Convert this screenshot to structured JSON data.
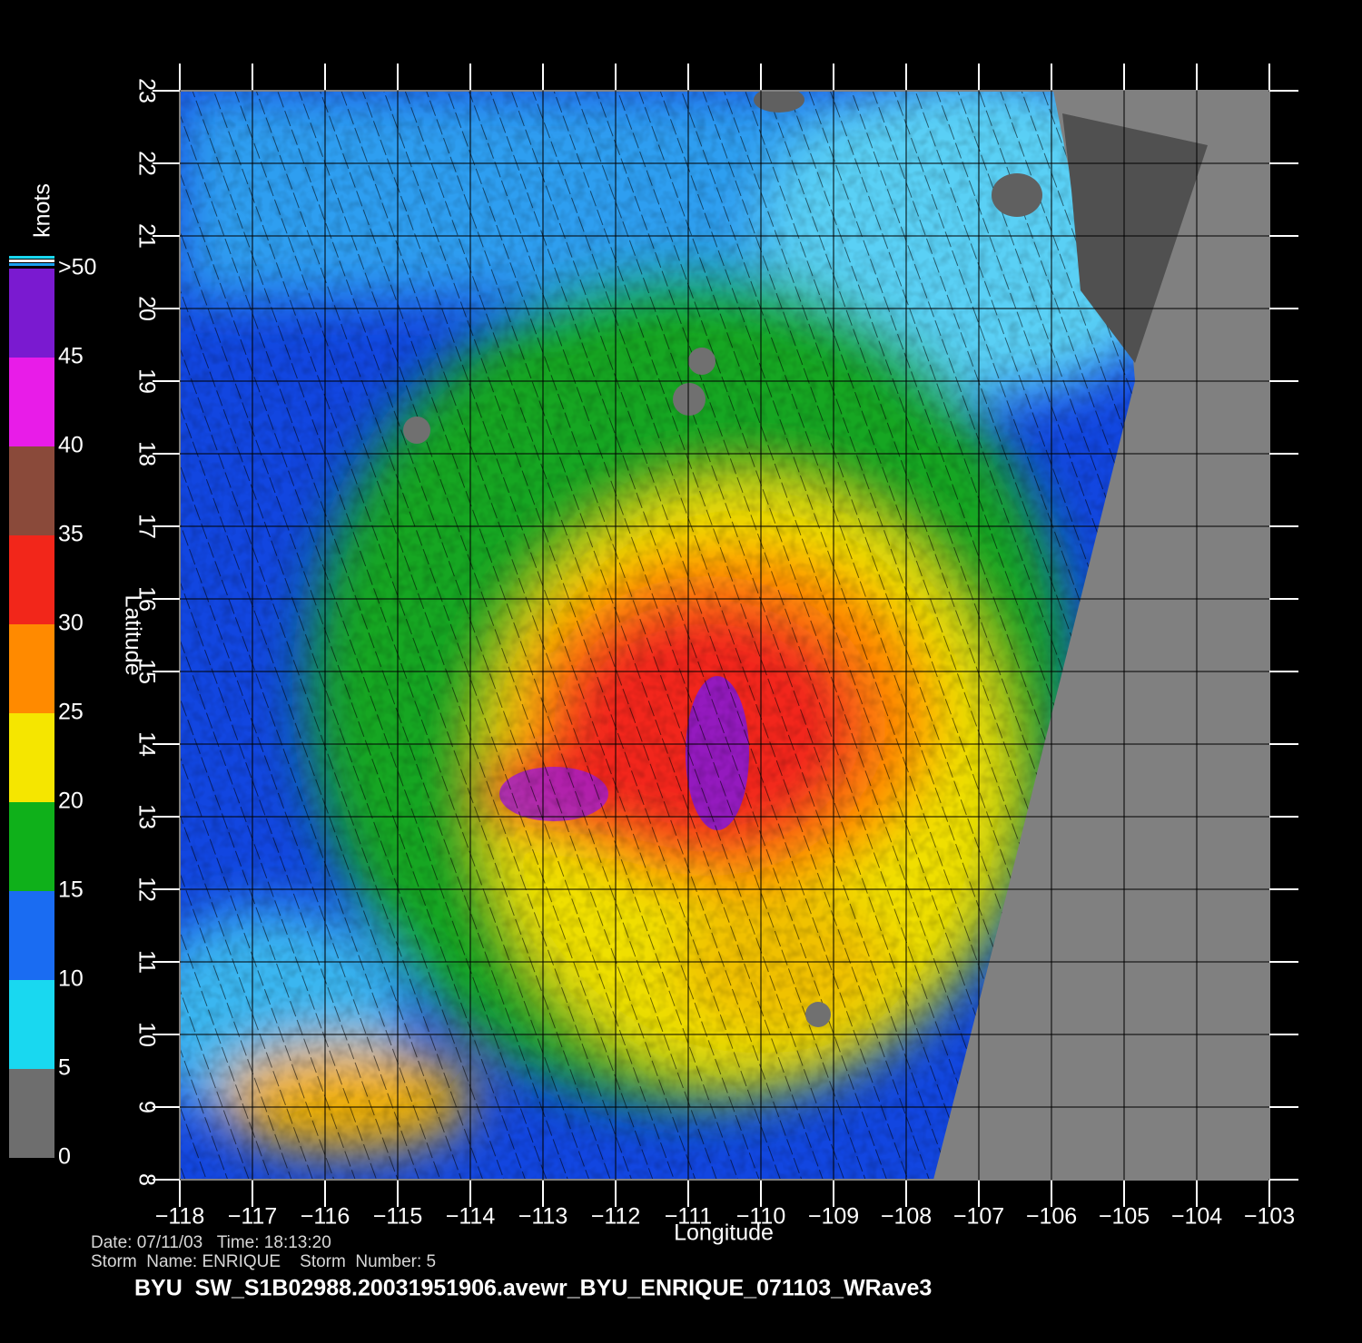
{
  "map": {
    "xlabel": "Longitude",
    "ylabel": "Latitude",
    "xlim": [
      -118,
      -103
    ],
    "ylim": [
      8,
      23
    ],
    "xticks": [
      {
        "value": -118,
        "label": "−118"
      },
      {
        "value": -117,
        "label": "−117"
      },
      {
        "value": -116,
        "label": "−116"
      },
      {
        "value": -115,
        "label": "−115"
      },
      {
        "value": -114,
        "label": "−114"
      },
      {
        "value": -113,
        "label": "−113"
      },
      {
        "value": -112,
        "label": "−112"
      },
      {
        "value": -111,
        "label": "−111"
      },
      {
        "value": -110,
        "label": "−110"
      },
      {
        "value": -109,
        "label": "−109"
      },
      {
        "value": -108,
        "label": "−108"
      },
      {
        "value": -107,
        "label": "−107"
      },
      {
        "value": -106,
        "label": "−106"
      },
      {
        "value": -105,
        "label": "−105"
      },
      {
        "value": -104,
        "label": "−104"
      },
      {
        "value": -103,
        "label": "−103"
      }
    ],
    "yticks": [
      8,
      9,
      10,
      11,
      12,
      13,
      14,
      15,
      16,
      17,
      18,
      19,
      20,
      21,
      22,
      23
    ],
    "grid": true,
    "colorbar": {
      "label": "knots",
      "ticks": [
        0,
        5,
        10,
        15,
        20,
        25,
        30,
        35,
        40,
        45,
        {
          "value": 50,
          "label": ">50"
        }
      ],
      "colors": [
        "#6e6e6e",
        "#19d8f0",
        "#1a6cf2",
        "#0fb01a",
        "#f5e600",
        "#ff8a00",
        "#f2261a",
        "#8a4a3a",
        "#e81ce8",
        "#7a1ad0"
      ]
    }
  },
  "info": {
    "line1": "Date: 07/11/03   Time: 18:13:20",
    "line2": "Storm  Name: ENRIQUE    Storm  Number: 5"
  },
  "title": "BYU  SW_S1B02988.20031951906.avewr_BYU_ENRIQUE_071103_WRave3"
}
